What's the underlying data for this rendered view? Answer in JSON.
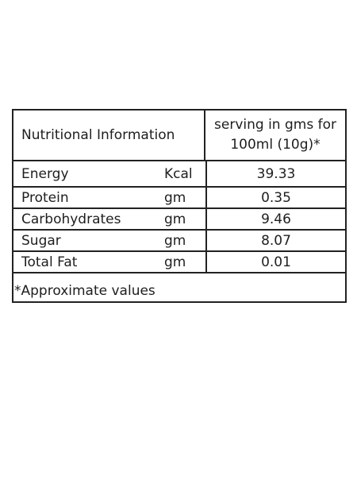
{
  "table": {
    "header_left": "Nutritional Information",
    "header_right_line1": "serving in gms for",
    "header_right_line2": "100ml (10g)*",
    "rows": [
      {
        "nutrient": "Energy",
        "unit": "Kcal",
        "value": "39.33"
      },
      {
        "nutrient": "Protein",
        "unit": "gm",
        "value": "0.35"
      },
      {
        "nutrient": "Carbohydrates",
        "unit": "gm",
        "value": "9.46"
      },
      {
        "nutrient": "Sugar",
        "unit": "gm",
        "value": "8.07"
      },
      {
        "nutrient": "Total Fat",
        "unit": "gm",
        "value": "0.01"
      }
    ],
    "footnote": "*Approximate values"
  }
}
